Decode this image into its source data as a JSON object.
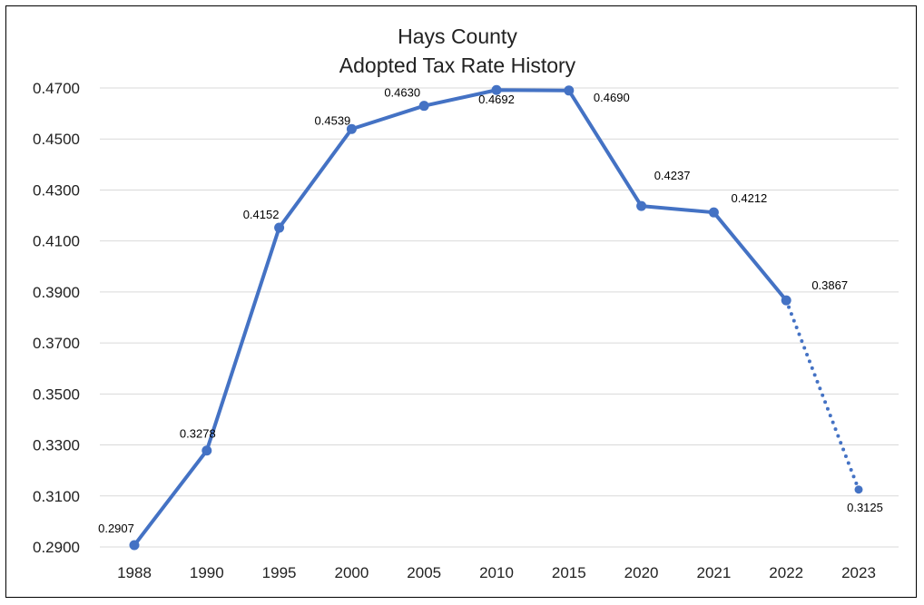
{
  "chart_data": {
    "type": "line",
    "title": "Hays County",
    "subtitle": "Adopted Tax Rate History",
    "xlabel": "",
    "ylabel": "",
    "categories": [
      "1988",
      "1990",
      "1995",
      "2000",
      "2005",
      "2010",
      "2015",
      "2020",
      "2021",
      "2022",
      "2023"
    ],
    "series": [
      {
        "values": [
          0.2907,
          0.3278,
          0.4152,
          0.4539,
          0.463,
          0.4692,
          0.469,
          0.4237,
          0.4212,
          0.3867,
          0.3125
        ],
        "data_labels": [
          "0.2907",
          "0.3278",
          "0.4152",
          "0.4539",
          "0.4630",
          "0.4692",
          "0.4690",
          "0.4237",
          "0.4212",
          "0.3867",
          "0.3125"
        ],
        "color": "#4472C4",
        "line_style": "solid",
        "dotted_final_segment": true
      }
    ],
    "ylim": [
      0.29,
      0.47
    ],
    "yticks": [
      "0.4700",
      "0.4500",
      "0.4300",
      "0.4100",
      "0.3900",
      "0.3700",
      "0.3500",
      "0.3300",
      "0.3100",
      "0.2900"
    ],
    "ytick_values": [
      0.47,
      0.45,
      0.43,
      0.41,
      0.39,
      0.37,
      0.35,
      0.33,
      0.31,
      0.29
    ],
    "grid": true,
    "legend": "none"
  },
  "colors": {
    "series": "#4472C4",
    "grid": "#d9d9d9",
    "text": "#222222",
    "frame": "#000000"
  }
}
